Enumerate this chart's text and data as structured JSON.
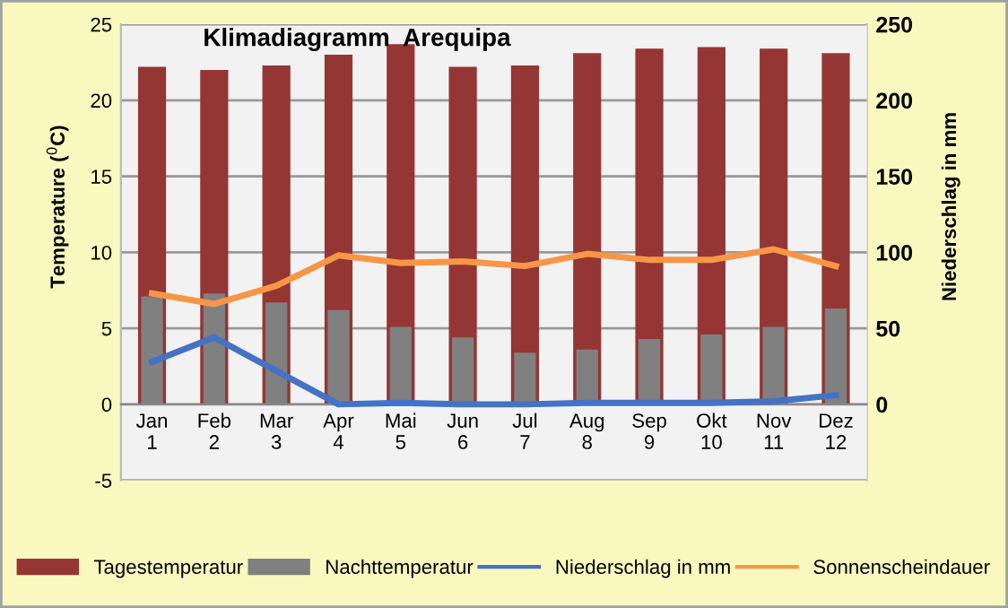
{
  "chart_data": {
    "type": "bar",
    "title": "Klimadiagramm  Arequipa",
    "ylabel": "Temperature ($^{0}$C)",
    "y2label": "Niederschlag in mm",
    "categories": [
      "Jan\n1",
      "Feb\n2",
      "Mar\n3",
      "Apr\n4",
      "Mai\n5",
      "Jun\n6",
      "Jul\n7",
      "Aug\n8",
      "Sep\n9",
      "Okt\n10",
      "Nov\n11",
      "Dez\n12"
    ],
    "series": [
      {
        "name": "Tagestemperatur",
        "color": "#943634",
        "values": [
          22.2,
          22.0,
          22.3,
          23.0,
          23.7,
          22.2,
          22.3,
          23.1,
          23.4,
          23.5,
          23.4,
          23.1
        ]
      },
      {
        "name": "Nachttemperatur",
        "color": "#808080",
        "values": [
          7.1,
          7.3,
          6.7,
          6.2,
          5.1,
          4.4,
          3.4,
          3.6,
          4.3,
          4.6,
          5.1,
          6.3
        ]
      },
      {
        "name": "Niederschlag in mm",
        "type": "line",
        "axis": "y2",
        "color": "#4472c4",
        "values": [
          28,
          44,
          22,
          0,
          1,
          0,
          0,
          1,
          1,
          1,
          2,
          6
        ]
      },
      {
        "name": "Sonnenscheindauer",
        "type": "line",
        "color": "#f79646",
        "values": [
          7.3,
          6.6,
          7.8,
          9.8,
          9.3,
          9.4,
          9.1,
          9.9,
          9.5,
          9.5,
          10.2,
          9.1
        ]
      }
    ],
    "ylim": [
      -5,
      25
    ],
    "yticks": [
      -5,
      0,
      5,
      10,
      15,
      20,
      25
    ],
    "y2lim": [
      -50,
      250
    ],
    "y2ticks": [
      0,
      50,
      100,
      150,
      200,
      250
    ],
    "grid": "y",
    "legend": "bottom",
    "marker": "none",
    "line_style": "solid"
  }
}
